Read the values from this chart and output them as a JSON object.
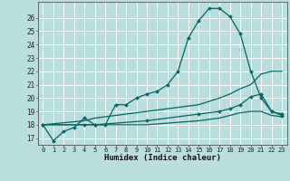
{
  "title": "",
  "xlabel": "Humidex (Indice chaleur)",
  "bg_color": "#b8dede",
  "grid_color": "#ffffff",
  "line_color": "#006666",
  "xlim": [
    -0.5,
    23.5
  ],
  "ylim": [
    16.5,
    27.2
  ],
  "xticks": [
    0,
    1,
    2,
    3,
    4,
    5,
    6,
    7,
    8,
    9,
    10,
    11,
    12,
    13,
    14,
    15,
    16,
    17,
    18,
    19,
    20,
    21,
    22,
    23
  ],
  "yticks": [
    17,
    18,
    19,
    20,
    21,
    22,
    23,
    24,
    25,
    26
  ],
  "series": [
    {
      "x": [
        0,
        1,
        2,
        3,
        4,
        5,
        6,
        7,
        8,
        9,
        10,
        11,
        12,
        13,
        14,
        15,
        16,
        17,
        18,
        19,
        20,
        21,
        22,
        23
      ],
      "y": [
        18.0,
        16.8,
        17.5,
        17.8,
        18.5,
        18.0,
        18.0,
        19.5,
        19.5,
        20.0,
        20.3,
        20.5,
        21.0,
        22.0,
        24.5,
        25.8,
        26.7,
        26.7,
        26.1,
        24.8,
        22.0,
        20.0,
        19.0,
        18.7
      ],
      "marker": true
    },
    {
      "x": [
        0,
        4,
        5,
        10,
        15,
        17,
        18,
        19,
        20,
        21,
        22,
        23
      ],
      "y": [
        18.0,
        18.3,
        18.5,
        19.0,
        19.5,
        20.0,
        20.3,
        20.7,
        21.0,
        21.8,
        22.0,
        22.0
      ],
      "marker": false
    },
    {
      "x": [
        0,
        4,
        5,
        10,
        15,
        17,
        18,
        19,
        20,
        21,
        22,
        23
      ],
      "y": [
        18.0,
        18.0,
        18.0,
        18.3,
        18.8,
        19.0,
        19.2,
        19.5,
        20.1,
        20.3,
        19.0,
        18.8
      ],
      "marker": true
    },
    {
      "x": [
        0,
        4,
        5,
        10,
        15,
        17,
        18,
        19,
        20,
        21,
        22,
        23
      ],
      "y": [
        18.0,
        18.0,
        18.0,
        18.0,
        18.3,
        18.5,
        18.7,
        18.9,
        19.0,
        19.0,
        18.7,
        18.6
      ],
      "marker": false
    }
  ]
}
